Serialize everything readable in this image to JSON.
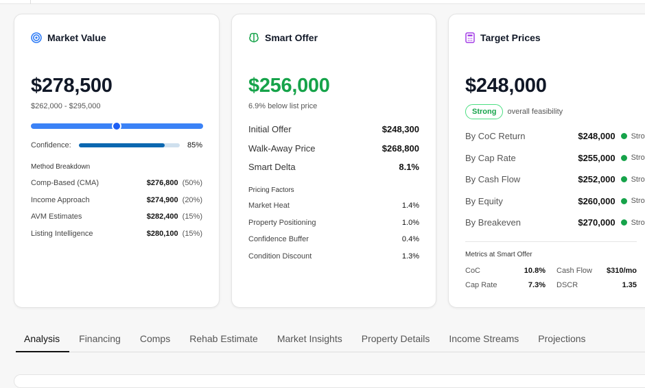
{
  "market_value": {
    "title": "Market Value",
    "icon": "target-icon",
    "value": "$278,500",
    "range": "$262,000 - $295,000",
    "range_position": 0.5,
    "confidence_label": "Confidence:",
    "confidence": 85,
    "confidence_text": "85%",
    "breakdown_title": "Method Breakdown",
    "methods": [
      {
        "label": "Comp-Based (CMA)",
        "value": "$276,800",
        "weight": "(50%)"
      },
      {
        "label": "Income Approach",
        "value": "$274,900",
        "weight": "(20%)"
      },
      {
        "label": "AVM Estimates",
        "value": "$282,400",
        "weight": "(15%)"
      },
      {
        "label": "Listing Intelligence",
        "value": "$280,100",
        "weight": "(15%)"
      }
    ]
  },
  "smart_offer": {
    "title": "Smart Offer",
    "icon": "brain-icon",
    "value": "$256,000",
    "subtitle": "6.9% below list price",
    "rows": [
      {
        "label": "Initial Offer",
        "value": "$248,300"
      },
      {
        "label": "Walk-Away Price",
        "value": "$268,800"
      },
      {
        "label": "Smart Delta",
        "value": "8.1%"
      }
    ],
    "factors_title": "Pricing Factors",
    "factors": [
      {
        "label": "Market Heat",
        "value": "1.4%"
      },
      {
        "label": "Property Positioning",
        "value": "1.0%"
      },
      {
        "label": "Confidence Buffer",
        "value": "0.4%"
      },
      {
        "label": "Condition Discount",
        "value": "1.3%"
      }
    ]
  },
  "target_prices": {
    "title": "Target Prices",
    "icon": "calculator-icon",
    "value": "$248,000",
    "badge": "Strong",
    "badge_note": "overall feasibility",
    "rows": [
      {
        "label": "By CoC Return",
        "value": "$248,000",
        "status": "Strong"
      },
      {
        "label": "By Cap Rate",
        "value": "$255,000",
        "status": "Strong"
      },
      {
        "label": "By Cash Flow",
        "value": "$252,000",
        "status": "Strong"
      },
      {
        "label": "By Equity",
        "value": "$260,000",
        "status": "Strong"
      },
      {
        "label": "By Breakeven",
        "value": "$270,000",
        "status": "Strong"
      }
    ],
    "metrics_title": "Metrics at Smart Offer",
    "metrics": [
      {
        "label": "CoC",
        "value": "10.8%"
      },
      {
        "label": "Cash Flow",
        "value": "$310/mo"
      },
      {
        "label": "Cap Rate",
        "value": "7.3%"
      },
      {
        "label": "DSCR",
        "value": "1.35"
      }
    ]
  },
  "tabs": [
    "Analysis",
    "Financing",
    "Comps",
    "Rehab Estimate",
    "Market Insights",
    "Property Details",
    "Income Streams",
    "Projections"
  ],
  "colors": {
    "blue": "#2f7cf6",
    "green": "#16a34a",
    "purple": "#a43ee6",
    "conf": "#0b67b0"
  }
}
